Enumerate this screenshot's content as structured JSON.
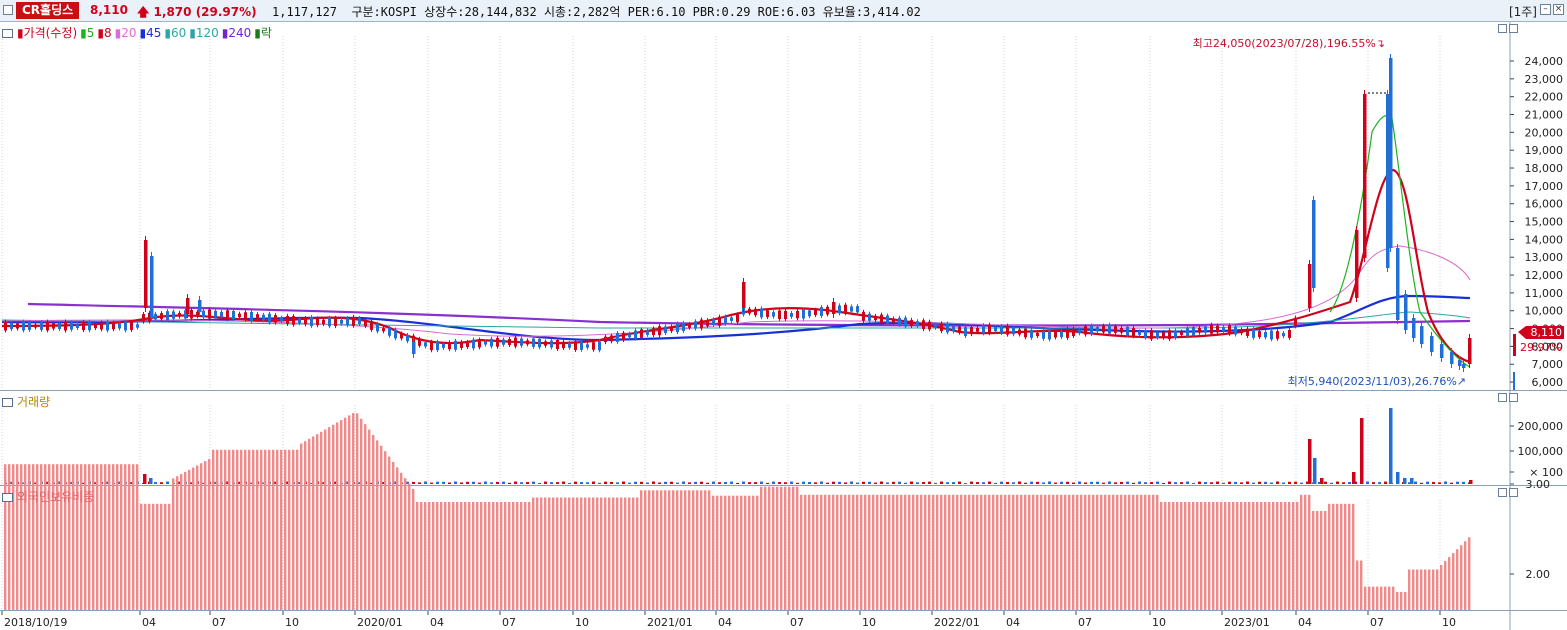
{
  "header": {
    "stock_name": "CR홀딩스",
    "price": "8,110",
    "change": "1,870",
    "change_pct": "(29.97%)",
    "info_line": "1,117,127  구분:KOSPI 상장수:28,144,832 시총:2,282억 PER:6.10 PBR:0.29 ROE:6.03 유보율:3,414.02",
    "period": "[1주]"
  },
  "price_panel": {
    "legend": [
      {
        "label": "가격(수정)",
        "color": "#d0021b"
      },
      {
        "label": "5",
        "color": "#1db31d"
      },
      {
        "label": "8",
        "color": "#d0021b"
      },
      {
        "label": "20",
        "color": "#e06ad8"
      },
      {
        "label": "45",
        "color": "#1a2fd6"
      },
      {
        "label": "60",
        "color": "#2aa6a6"
      },
      {
        "label": "120",
        "color": "#2aa6a6"
      },
      {
        "label": "240",
        "color": "#7a1fd0"
      },
      {
        "label": "락",
        "color": "#1a7a1a"
      }
    ],
    "yaxis": [
      "24,000",
      "23,000",
      "22,000",
      "21,000",
      "20,000",
      "19,000",
      "18,000",
      "17,000",
      "16,000",
      "15,000",
      "14,000",
      "13,000",
      "12,000",
      "11,000",
      "10,000",
      "9,000",
      "8,000",
      "7,000",
      "6,000"
    ],
    "current_price_tag": "8,110",
    "current_pct_tag": "29.97%",
    "high_annotation": "최고24,050(2023/07/28),196.55%",
    "low_annotation": "최저5,940(2023/11/03),26.76%"
  },
  "volume_panel": {
    "legend": "거래량",
    "yaxis": [
      "200,000",
      "100,000",
      "× 100"
    ]
  },
  "foreign_panel": {
    "legend": "외국인보유비중",
    "yaxis": [
      "3.00",
      "2.00"
    ]
  },
  "xaxis": [
    "2018/10/19",
    "04",
    "07",
    "10",
    "2020/01",
    "04",
    "07",
    "10",
    "2021/01",
    "04",
    "07",
    "10",
    "2022/01",
    "04",
    "07",
    "10",
    "2023/01",
    "04",
    "07",
    "10"
  ],
  "colors": {
    "up": "#d0021b",
    "down": "#1f6fd6",
    "foreign_bar": "#f08a8a",
    "grid": "#c8d3df"
  }
}
